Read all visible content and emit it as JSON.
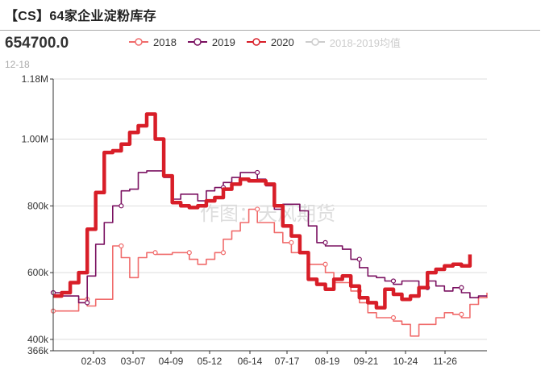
{
  "header": {
    "title": "【CS】64家企业淀粉库存",
    "latest_value": "654700.0",
    "latest_date": "12-18"
  },
  "watermark": "作图：天风期货",
  "colors": {
    "s2018": "#f06b6b",
    "s2019": "#7a1060",
    "s2020": "#d81e28",
    "avg": "#cccccc",
    "grid": "#dddddd",
    "axis": "#333333"
  },
  "chart_data": {
    "type": "line",
    "title": "【CS】64家企业淀粉库存",
    "legend": [
      "2018",
      "2019",
      "2020",
      "2018-2019均值"
    ],
    "legend_position": "top",
    "x_ticks": [
      "02-03",
      "03-07",
      "04-09",
      "05-12",
      "06-14",
      "07-17",
      "08-19",
      "09-21",
      "10-24",
      "11-26"
    ],
    "y_ticks": [
      "366k",
      "400k",
      "600k",
      "800k",
      "1.00M",
      "1.18M"
    ],
    "ylim": [
      366000,
      1180000
    ],
    "x_unit": "weeks from start of year",
    "xlim": [
      0,
      51
    ],
    "grid": true,
    "series": [
      {
        "name": "2018",
        "values": [
          [
            0,
            485000
          ],
          [
            3,
            485000
          ],
          [
            3,
            520000
          ],
          [
            4,
            520000
          ],
          [
            4,
            500000
          ],
          [
            5,
            500000
          ],
          [
            5,
            520000
          ],
          [
            7,
            520000
          ],
          [
            7,
            680000
          ],
          [
            8,
            680000
          ],
          [
            8,
            645000
          ],
          [
            9,
            645000
          ],
          [
            9,
            585000
          ],
          [
            10,
            585000
          ],
          [
            10,
            645000
          ],
          [
            11,
            645000
          ],
          [
            11,
            660000
          ],
          [
            12,
            660000
          ],
          [
            12,
            655000
          ],
          [
            14,
            655000
          ],
          [
            14,
            660000
          ],
          [
            16,
            660000
          ],
          [
            16,
            640000
          ],
          [
            17,
            640000
          ],
          [
            17,
            625000
          ],
          [
            18,
            625000
          ],
          [
            18,
            640000
          ],
          [
            19,
            640000
          ],
          [
            19,
            660000
          ],
          [
            20,
            660000
          ],
          [
            20,
            700000
          ],
          [
            21,
            700000
          ],
          [
            21,
            725000
          ],
          [
            22,
            725000
          ],
          [
            22,
            750000
          ],
          [
            23,
            750000
          ],
          [
            23,
            790000
          ],
          [
            24,
            790000
          ],
          [
            24,
            750000
          ],
          [
            26,
            750000
          ],
          [
            26,
            720000
          ],
          [
            27,
            720000
          ],
          [
            27,
            690000
          ],
          [
            28,
            690000
          ],
          [
            28,
            660000
          ],
          [
            30,
            660000
          ],
          [
            30,
            625000
          ],
          [
            32,
            625000
          ],
          [
            32,
            600000
          ],
          [
            33,
            600000
          ],
          [
            33,
            570000
          ],
          [
            35,
            570000
          ],
          [
            35,
            545000
          ],
          [
            36,
            545000
          ],
          [
            36,
            510000
          ],
          [
            37,
            510000
          ],
          [
            37,
            480000
          ],
          [
            38,
            480000
          ],
          [
            38,
            465000
          ],
          [
            40,
            465000
          ],
          [
            40,
            455000
          ],
          [
            41,
            455000
          ],
          [
            41,
            445000
          ],
          [
            42,
            445000
          ],
          [
            42,
            410000
          ],
          [
            43,
            410000
          ],
          [
            43,
            445000
          ],
          [
            45,
            445000
          ],
          [
            45,
            465000
          ],
          [
            46,
            465000
          ],
          [
            46,
            480000
          ],
          [
            47,
            480000
          ],
          [
            47,
            475000
          ],
          [
            48,
            475000
          ],
          [
            48,
            465000
          ],
          [
            49,
            465000
          ],
          [
            49,
            505000
          ],
          [
            50,
            505000
          ],
          [
            50,
            525000
          ],
          [
            51,
            525000
          ],
          [
            51,
            540000
          ]
        ]
      },
      {
        "name": "2019",
        "values": [
          [
            0,
            540000
          ],
          [
            1,
            540000
          ],
          [
            1,
            530000
          ],
          [
            3,
            530000
          ],
          [
            3,
            510000
          ],
          [
            4,
            510000
          ],
          [
            4,
            590000
          ],
          [
            5,
            590000
          ],
          [
            5,
            685000
          ],
          [
            6,
            685000
          ],
          [
            6,
            750000
          ],
          [
            7,
            750000
          ],
          [
            7,
            800000
          ],
          [
            8,
            800000
          ],
          [
            8,
            845000
          ],
          [
            9,
            845000
          ],
          [
            9,
            850000
          ],
          [
            10,
            850000
          ],
          [
            10,
            900000
          ],
          [
            11,
            900000
          ],
          [
            11,
            905000
          ],
          [
            13,
            905000
          ],
          [
            13,
            885000
          ],
          [
            14,
            885000
          ],
          [
            14,
            820000
          ],
          [
            15,
            820000
          ],
          [
            15,
            835000
          ],
          [
            17,
            835000
          ],
          [
            17,
            815000
          ],
          [
            18,
            815000
          ],
          [
            18,
            845000
          ],
          [
            19,
            845000
          ],
          [
            19,
            855000
          ],
          [
            20,
            855000
          ],
          [
            20,
            870000
          ],
          [
            21,
            870000
          ],
          [
            21,
            885000
          ],
          [
            22,
            885000
          ],
          [
            22,
            900000
          ],
          [
            24,
            900000
          ],
          [
            24,
            880000
          ],
          [
            25,
            880000
          ],
          [
            25,
            860000
          ],
          [
            26,
            860000
          ],
          [
            26,
            790000
          ],
          [
            27,
            790000
          ],
          [
            27,
            805000
          ],
          [
            29,
            805000
          ],
          [
            29,
            785000
          ],
          [
            30,
            785000
          ],
          [
            30,
            740000
          ],
          [
            31,
            740000
          ],
          [
            31,
            690000
          ],
          [
            32,
            690000
          ],
          [
            32,
            680000
          ],
          [
            34,
            680000
          ],
          [
            34,
            670000
          ],
          [
            35,
            670000
          ],
          [
            35,
            640000
          ],
          [
            36,
            640000
          ],
          [
            36,
            615000
          ],
          [
            37,
            615000
          ],
          [
            37,
            590000
          ],
          [
            38,
            590000
          ],
          [
            38,
            585000
          ],
          [
            39,
            585000
          ],
          [
            39,
            575000
          ],
          [
            40,
            575000
          ],
          [
            40,
            565000
          ],
          [
            41,
            565000
          ],
          [
            41,
            575000
          ],
          [
            43,
            575000
          ],
          [
            43,
            555000
          ],
          [
            44,
            555000
          ],
          [
            44,
            575000
          ],
          [
            45,
            575000
          ],
          [
            45,
            560000
          ],
          [
            46,
            560000
          ],
          [
            46,
            545000
          ],
          [
            47,
            545000
          ],
          [
            47,
            555000
          ],
          [
            48,
            555000
          ],
          [
            48,
            540000
          ],
          [
            49,
            540000
          ],
          [
            49,
            525000
          ],
          [
            50,
            525000
          ],
          [
            50,
            530000
          ],
          [
            51,
            530000
          ],
          [
            51,
            530000
          ]
        ]
      },
      {
        "name": "2020",
        "values": [
          [
            0,
            530000
          ],
          [
            1,
            530000
          ],
          [
            1,
            540000
          ],
          [
            2,
            540000
          ],
          [
            2,
            570000
          ],
          [
            3,
            570000
          ],
          [
            3,
            600000
          ],
          [
            4,
            600000
          ],
          [
            4,
            730000
          ],
          [
            5,
            730000
          ],
          [
            5,
            840000
          ],
          [
            6,
            840000
          ],
          [
            6,
            960000
          ],
          [
            7,
            960000
          ],
          [
            7,
            965000
          ],
          [
            8,
            965000
          ],
          [
            8,
            985000
          ],
          [
            9,
            985000
          ],
          [
            9,
            1020000
          ],
          [
            10,
            1020000
          ],
          [
            10,
            1040000
          ],
          [
            11,
            1040000
          ],
          [
            11,
            1075000
          ],
          [
            12,
            1075000
          ],
          [
            12,
            1000000
          ],
          [
            13,
            1000000
          ],
          [
            13,
            890000
          ],
          [
            14,
            890000
          ],
          [
            14,
            810000
          ],
          [
            15,
            810000
          ],
          [
            15,
            800000
          ],
          [
            16,
            800000
          ],
          [
            16,
            795000
          ],
          [
            17,
            795000
          ],
          [
            17,
            800000
          ],
          [
            18,
            800000
          ],
          [
            18,
            815000
          ],
          [
            19,
            815000
          ],
          [
            19,
            825000
          ],
          [
            20,
            825000
          ],
          [
            20,
            850000
          ],
          [
            21,
            850000
          ],
          [
            21,
            865000
          ],
          [
            22,
            865000
          ],
          [
            22,
            880000
          ],
          [
            23,
            880000
          ],
          [
            23,
            875000
          ],
          [
            25,
            875000
          ],
          [
            25,
            865000
          ],
          [
            26,
            865000
          ],
          [
            26,
            800000
          ],
          [
            27,
            800000
          ],
          [
            27,
            740000
          ],
          [
            28,
            740000
          ],
          [
            28,
            710000
          ],
          [
            29,
            710000
          ],
          [
            29,
            660000
          ],
          [
            30,
            660000
          ],
          [
            30,
            580000
          ],
          [
            31,
            580000
          ],
          [
            31,
            565000
          ],
          [
            32,
            565000
          ],
          [
            32,
            550000
          ],
          [
            33,
            550000
          ],
          [
            33,
            580000
          ],
          [
            34,
            580000
          ],
          [
            34,
            590000
          ],
          [
            35,
            590000
          ],
          [
            35,
            560000
          ],
          [
            36,
            560000
          ],
          [
            36,
            525000
          ],
          [
            37,
            525000
          ],
          [
            37,
            510000
          ],
          [
            38,
            510000
          ],
          [
            38,
            495000
          ],
          [
            39,
            495000
          ],
          [
            39,
            550000
          ],
          [
            40,
            550000
          ],
          [
            40,
            535000
          ],
          [
            41,
            535000
          ],
          [
            41,
            520000
          ],
          [
            42,
            520000
          ],
          [
            42,
            530000
          ],
          [
            43,
            530000
          ],
          [
            43,
            555000
          ],
          [
            44,
            555000
          ],
          [
            44,
            600000
          ],
          [
            45,
            600000
          ],
          [
            45,
            610000
          ],
          [
            46,
            610000
          ],
          [
            46,
            620000
          ],
          [
            47,
            620000
          ],
          [
            47,
            625000
          ],
          [
            48,
            625000
          ],
          [
            48,
            620000
          ],
          [
            49,
            620000
          ],
          [
            49,
            654700
          ]
        ]
      }
    ]
  }
}
